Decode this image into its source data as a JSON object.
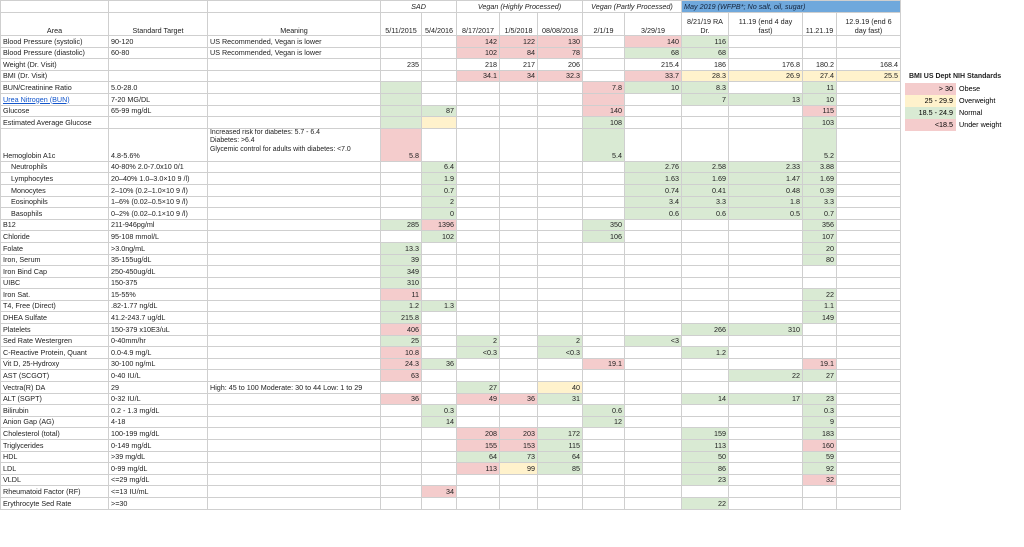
{
  "groups": {
    "sad": "SAD",
    "vegan_hp": "Vegan (Highly Processed)",
    "vegan_pp": "Vegan (Partly Processed)",
    "may": "May 2019 (WFPB*; No salt, oil, sugar)"
  },
  "headers": [
    "Area",
    "Standard Target",
    "Meaning",
    "5/11/2015",
    "5/4/2016",
    "8/17/2017",
    "1/5/2018",
    "08/08/2018",
    "2/1/19",
    "3/29/19",
    "8/21/19 RA Dr.",
    "11.19 (end 4 day fast)",
    "11.21.19",
    "12.9.19 (end 6 day fast)"
  ],
  "rows": [
    {
      "area": "Blood Pressure (systolic)",
      "target": "90-120",
      "meaning": "US Recommended, Vegan is lower",
      "v": [
        "",
        "",
        "142",
        "122",
        "130",
        "",
        "140",
        "116",
        "",
        "",
        ""
      ],
      "c": [
        "",
        "",
        "r",
        "r",
        "r",
        "",
        "r",
        "g",
        "",
        "",
        ""
      ]
    },
    {
      "area": "Blood Pressure (diastolic)",
      "target": "60-80",
      "meaning": "US Recommended, Vegan is lower",
      "v": [
        "",
        "",
        "102",
        "84",
        "78",
        "",
        "68",
        "68",
        "",
        "",
        ""
      ],
      "c": [
        "",
        "",
        "r",
        "r",
        "r",
        "",
        "g",
        "g",
        "",
        "",
        ""
      ]
    },
    {
      "area": "Weight (Dr. Visit)",
      "target": "",
      "meaning": "",
      "v": [
        "235",
        "",
        "218",
        "217",
        "206",
        "",
        "215.4",
        "186",
        "176.8",
        "180.2",
        "168.4"
      ],
      "c": [
        "",
        "",
        "",
        "",
        "",
        "",
        "",
        "",
        "",
        "",
        ""
      ]
    },
    {
      "area": "BMI (Dr. Visit)",
      "target": "",
      "meaning": "",
      "v": [
        "",
        "",
        "34.1",
        "34",
        "32.3",
        "",
        "33.7",
        "28.3",
        "26.9",
        "27.4",
        "25.5"
      ],
      "c": [
        "",
        "",
        "r",
        "r",
        "r",
        "",
        "r",
        "y",
        "y",
        "y",
        "y"
      ]
    },
    {
      "area": "BUN/Creatinine Ratio",
      "target": "5.0-28.0",
      "meaning": "",
      "v": [
        "",
        "",
        "",
        "",
        "",
        "7.8",
        "10",
        "8.3",
        "",
        "11",
        ""
      ],
      "c": [
        "g",
        "",
        "",
        "",
        "",
        "r",
        "g",
        "g",
        "",
        "g",
        ""
      ]
    },
    {
      "area": "Urea Nitrogen (BUN)",
      "target": "7-20 MG/DL",
      "meaning": "",
      "link": true,
      "v": [
        "",
        "",
        "",
        "",
        "",
        "",
        "",
        "7",
        "13",
        "10",
        ""
      ],
      "c": [
        "g",
        "",
        "",
        "",
        "",
        "r",
        "",
        "g",
        "g",
        "g",
        ""
      ]
    },
    {
      "area": "Glucose",
      "target": "65-99 mg/dL",
      "meaning": "",
      "v": [
        "",
        "87",
        "",
        "",
        "",
        "140",
        "",
        "",
        "",
        "115",
        ""
      ],
      "c": [
        "g",
        "g",
        "",
        "",
        "",
        "r",
        "",
        "",
        "",
        "r",
        ""
      ]
    },
    {
      "area": "Estimated Average Glucose",
      "target": "",
      "meaning": "",
      "v": [
        "",
        "",
        "",
        "",
        "",
        "108",
        "",
        "",
        "",
        "103",
        ""
      ],
      "c": [
        "g",
        "y",
        "",
        "",
        "",
        "g",
        "",
        "",
        "",
        "g",
        ""
      ]
    },
    {
      "area": "Hemoglobin A1c",
      "target": "4.8-5.6%",
      "meaning": "Increased risk for diabetes: 5.7 - 6.4\nDiabetes: >6.4\nGlycemic control for adults with diabetes: <7.0",
      "tall": true,
      "v": [
        "5.8",
        "",
        "",
        "",
        "",
        "5.4",
        "",
        "",
        "",
        "5.2",
        ""
      ],
      "c": [
        "r",
        "",
        "",
        "",
        "",
        "g",
        "",
        "",
        "",
        "g",
        ""
      ]
    },
    {
      "area": "Neutrophils",
      "target": "40-80% 2.0-7.0x10 0/1",
      "meaning": "",
      "ind": true,
      "v": [
        "",
        "6.4",
        "",
        "",
        "",
        "",
        "2.76",
        "2.58",
        "2.33",
        "3.88",
        ""
      ],
      "c": [
        "",
        "g",
        "",
        "",
        "",
        "",
        "g",
        "g",
        "g",
        "g",
        ""
      ]
    },
    {
      "area": "Lymphocytes",
      "target": "20–40% 1.0–3.0×10 9 /l)",
      "meaning": "",
      "ind": true,
      "v": [
        "",
        "1.9",
        "",
        "",
        "",
        "",
        "1.63",
        "1.69",
        "1.47",
        "1.69",
        ""
      ],
      "c": [
        "",
        "g",
        "",
        "",
        "",
        "",
        "g",
        "g",
        "g",
        "g",
        ""
      ]
    },
    {
      "area": "Monocytes",
      "target": "2–10% (0.2–1.0×10 9 /l)",
      "meaning": "",
      "ind": true,
      "v": [
        "",
        "0.7",
        "",
        "",
        "",
        "",
        "0.74",
        "0.41",
        "0.48",
        "0.39",
        ""
      ],
      "c": [
        "",
        "g",
        "",
        "",
        "",
        "",
        "g",
        "g",
        "g",
        "g",
        ""
      ]
    },
    {
      "area": "Eosinophils",
      "target": "1–6% (0.02–0.5×10 9 /l)",
      "meaning": "",
      "ind": true,
      "v": [
        "",
        "2",
        "",
        "",
        "",
        "",
        "3.4",
        "3.3",
        "1.8",
        "3.3",
        ""
      ],
      "c": [
        "",
        "g",
        "",
        "",
        "",
        "",
        "g",
        "g",
        "g",
        "g",
        ""
      ]
    },
    {
      "area": "Basophils",
      "target": "0–2% (0.02–0.1×10 9 /l)",
      "meaning": "",
      "ind": true,
      "v": [
        "",
        "0",
        "",
        "",
        "",
        "",
        "0.6",
        "0.6",
        "0.5",
        "0.7",
        ""
      ],
      "c": [
        "",
        "g",
        "",
        "",
        "",
        "",
        "g",
        "g",
        "g",
        "g",
        ""
      ]
    },
    {
      "area": "B12",
      "target": "211-946pg/ml",
      "meaning": "",
      "v": [
        "285",
        "1396",
        "",
        "",
        "",
        "350",
        "",
        "",
        "",
        "356",
        ""
      ],
      "c": [
        "g",
        "r",
        "",
        "",
        "",
        "g",
        "",
        "",
        "",
        "g",
        ""
      ]
    },
    {
      "area": "Chloride",
      "target": "95-108 mmol/L",
      "meaning": "",
      "v": [
        "",
        "102",
        "",
        "",
        "",
        "106",
        "",
        "",
        "",
        "107",
        ""
      ],
      "c": [
        "",
        "g",
        "",
        "",
        "",
        "g",
        "",
        "",
        "",
        "g",
        ""
      ]
    },
    {
      "area": "Folate",
      "target": ">3.0ng/mL",
      "meaning": "",
      "v": [
        "13.3",
        "",
        "",
        "",
        "",
        "",
        "",
        "",
        "",
        "20",
        ""
      ],
      "c": [
        "g",
        "",
        "",
        "",
        "",
        "",
        "",
        "",
        "",
        "g",
        ""
      ]
    },
    {
      "area": "Iron, Serum",
      "target": "35-155ug/dL",
      "meaning": "",
      "v": [
        "39",
        "",
        "",
        "",
        "",
        "",
        "",
        "",
        "",
        "80",
        ""
      ],
      "c": [
        "g",
        "",
        "",
        "",
        "",
        "",
        "",
        "",
        "",
        "g",
        ""
      ]
    },
    {
      "area": "Iron Bind Cap",
      "target": "250-450ug/dL",
      "meaning": "",
      "v": [
        "349",
        "",
        "",
        "",
        "",
        "",
        "",
        "",
        "",
        "",
        ""
      ],
      "c": [
        "g",
        "",
        "",
        "",
        "",
        "",
        "",
        "",
        "",
        "",
        ""
      ]
    },
    {
      "area": "UIBC",
      "target": "150-375",
      "meaning": "",
      "v": [
        "310",
        "",
        "",
        "",
        "",
        "",
        "",
        "",
        "",
        "",
        ""
      ],
      "c": [
        "g",
        "",
        "",
        "",
        "",
        "",
        "",
        "",
        "",
        "",
        ""
      ]
    },
    {
      "area": "Iron Sat.",
      "target": "15-55%",
      "meaning": "",
      "v": [
        "11",
        "",
        "",
        "",
        "",
        "",
        "",
        "",
        "",
        "22",
        ""
      ],
      "c": [
        "r",
        "",
        "",
        "",
        "",
        "",
        "",
        "",
        "",
        "g",
        ""
      ]
    },
    {
      "area": "T4, Free (Direct)",
      "target": ".82-1.77 ng/dL",
      "meaning": "",
      "v": [
        "1.2",
        "1.3",
        "",
        "",
        "",
        "",
        "",
        "",
        "",
        "1.1",
        ""
      ],
      "c": [
        "g",
        "g",
        "",
        "",
        "",
        "",
        "",
        "",
        "",
        "g",
        ""
      ]
    },
    {
      "area": "DHEA Sulfate",
      "target": "41.2-243.7 ug/dL",
      "meaning": "",
      "v": [
        "215.8",
        "",
        "",
        "",
        "",
        "",
        "",
        "",
        "",
        "149",
        ""
      ],
      "c": [
        "g",
        "",
        "",
        "",
        "",
        "",
        "",
        "",
        "",
        "g",
        ""
      ]
    },
    {
      "area": "Platelets",
      "target": "150-379 x10E3/uL",
      "meaning": "",
      "v": [
        "406",
        "",
        "",
        "",
        "",
        "",
        "",
        "266",
        "310",
        "",
        ""
      ],
      "c": [
        "r",
        "",
        "",
        "",
        "",
        "",
        "",
        "g",
        "g",
        "",
        ""
      ]
    },
    {
      "area": "Sed Rate Westergren",
      "target": "0-40mm/hr",
      "meaning": "",
      "v": [
        "25",
        "",
        "2",
        "",
        "2",
        "",
        "<3",
        "",
        "",
        "",
        ""
      ],
      "c": [
        "g",
        "",
        "g",
        "",
        "g",
        "",
        "g",
        "",
        "",
        "",
        ""
      ]
    },
    {
      "area": "C-Reactive Protein, Quant",
      "target": "0.0-4.9 mg/L",
      "meaning": "",
      "v": [
        "10.8",
        "",
        "<0.3",
        "",
        "<0.3",
        "",
        "",
        "1.2",
        "",
        "",
        ""
      ],
      "c": [
        "r",
        "",
        "g",
        "",
        "g",
        "",
        "",
        "g",
        "",
        "",
        ""
      ]
    },
    {
      "area": "Vit D, 25-Hydroxy",
      "target": "30-100 ng/mL",
      "meaning": "",
      "v": [
        "24.3",
        "36",
        "",
        "",
        "",
        "19.1",
        "",
        "",
        "",
        "19.1",
        ""
      ],
      "c": [
        "r",
        "g",
        "",
        "",
        "",
        "r",
        "",
        "",
        "",
        "r",
        ""
      ]
    },
    {
      "area": "AST (SCGOT)",
      "target": "0-40 IU/L",
      "meaning": "",
      "v": [
        "63",
        "",
        "",
        "",
        "",
        "",
        "",
        "",
        "22",
        "27",
        ""
      ],
      "c": [
        "r",
        "",
        "",
        "",
        "",
        "",
        "",
        "",
        "g",
        "g",
        ""
      ]
    },
    {
      "area": "Vectra(R) DA",
      "target": "29",
      "meaning": "High: 45 to 100 Moderate: 30 to 44 Low: 1 to 29",
      "v": [
        "",
        "",
        "27",
        "",
        "40",
        "",
        "",
        "",
        "",
        "",
        ""
      ],
      "c": [
        "",
        "",
        "g",
        "",
        "y",
        "",
        "",
        "",
        "",
        "",
        ""
      ]
    },
    {
      "area": "ALT (SGPT)",
      "target": "0-32 IU/L",
      "meaning": "",
      "v": [
        "36",
        "",
        "49",
        "36",
        "31",
        "",
        "",
        "14",
        "17",
        "23",
        ""
      ],
      "c": [
        "r",
        "",
        "r",
        "r",
        "g",
        "",
        "",
        "g",
        "g",
        "g",
        ""
      ]
    },
    {
      "area": "Bilirubin",
      "target": "0.2 - 1.3 mg/dL",
      "meaning": "",
      "v": [
        "",
        "0.3",
        "",
        "",
        "",
        "0.6",
        "",
        "",
        "",
        "0.3",
        ""
      ],
      "c": [
        "",
        "g",
        "",
        "",
        "",
        "g",
        "",
        "",
        "",
        "g",
        ""
      ]
    },
    {
      "area": "Anion Gap (AG)",
      "target": "4-18",
      "meaning": "",
      "v": [
        "",
        "14",
        "",
        "",
        "",
        "12",
        "",
        "",
        "",
        "9",
        ""
      ],
      "c": [
        "",
        "g",
        "",
        "",
        "",
        "g",
        "",
        "",
        "",
        "g",
        ""
      ]
    },
    {
      "area": "Cholesterol (total)",
      "target": "100-199 mg/dL",
      "meaning": "",
      "v": [
        "",
        "",
        "208",
        "203",
        "172",
        "",
        "",
        "159",
        "",
        "183",
        ""
      ],
      "c": [
        "",
        "",
        "r",
        "r",
        "g",
        "",
        "",
        "g",
        "",
        "g",
        ""
      ]
    },
    {
      "area": "Triglycerides",
      "target": "0-149 mg/dL",
      "meaning": "",
      "v": [
        "",
        "",
        "155",
        "153",
        "115",
        "",
        "",
        "113",
        "",
        "160",
        ""
      ],
      "c": [
        "",
        "",
        "r",
        "r",
        "g",
        "",
        "",
        "g",
        "",
        "r",
        ""
      ]
    },
    {
      "area": "HDL",
      "target": ">39 mg/dL",
      "meaning": "",
      "v": [
        "",
        "",
        "64",
        "73",
        "64",
        "",
        "",
        "50",
        "",
        "59",
        ""
      ],
      "c": [
        "",
        "",
        "g",
        "g",
        "g",
        "",
        "",
        "g",
        "",
        "g",
        ""
      ]
    },
    {
      "area": "LDL",
      "target": "0-99 mg/dL",
      "meaning": "",
      "v": [
        "",
        "",
        "113",
        "99",
        "85",
        "",
        "",
        "86",
        "",
        "92",
        ""
      ],
      "c": [
        "",
        "",
        "r",
        "y",
        "g",
        "",
        "",
        "g",
        "",
        "g",
        ""
      ]
    },
    {
      "area": "VLDL",
      "target": "<=29 mg/dL",
      "meaning": "",
      "v": [
        "",
        "",
        "",
        "",
        "",
        "",
        "",
        "23",
        "",
        "32",
        ""
      ],
      "c": [
        "",
        "",
        "",
        "",
        "",
        "",
        "",
        "g",
        "",
        "r",
        ""
      ]
    },
    {
      "area": "Rheumatoid Factor (RF)",
      "target": "<=13 IU/mL",
      "meaning": "",
      "v": [
        "",
        "34",
        "",
        "",
        "",
        "",
        "",
        "",
        "",
        "",
        ""
      ],
      "c": [
        "",
        "r",
        "",
        "",
        "",
        "",
        "",
        "",
        "",
        "",
        ""
      ]
    },
    {
      "area": "Erythrocyte Sed Rate",
      "target": ">=30",
      "meaning": "",
      "v": [
        "",
        "",
        "",
        "",
        "",
        "",
        "",
        "22",
        "",
        "",
        ""
      ],
      "c": [
        "",
        "",
        "",
        "",
        "",
        "",
        "",
        "g",
        "",
        "",
        ""
      ]
    }
  ],
  "legend": {
    "title": "BMI US Dept NIH Standards",
    "items": [
      {
        "range": "> 30",
        "label": "Obese",
        "color": "#f4cccc"
      },
      {
        "range": "25 - 29.9",
        "label": "Overweight",
        "color": "#fff2cc"
      },
      {
        "range": "18.5 - 24.9",
        "label": "Normal",
        "color": "#d9ead3"
      },
      {
        "range": "<18.5",
        "label": "Under weight",
        "color": "#f4cccc"
      }
    ]
  }
}
